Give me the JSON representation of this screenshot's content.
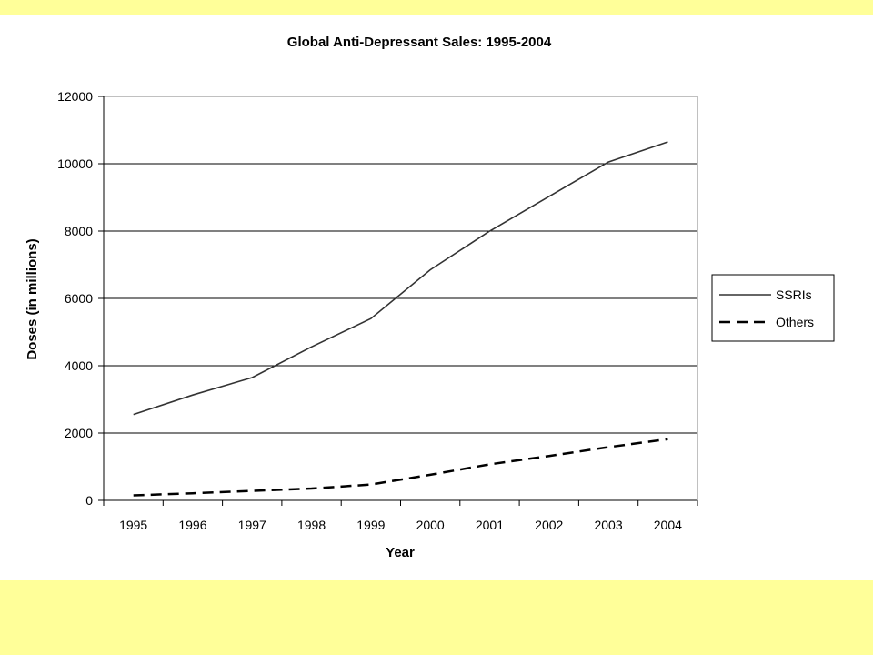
{
  "chart_data": {
    "type": "line",
    "title": "Global Anti-Depressant Sales: 1995-2004",
    "xlabel": "Year",
    "ylabel": "Doses (in millions)",
    "categories": [
      "1995",
      "1996",
      "1997",
      "1998",
      "1999",
      "2000",
      "2001",
      "2002",
      "2003",
      "2004"
    ],
    "ylim": [
      0,
      12000
    ],
    "yticks": [
      0,
      2000,
      4000,
      6000,
      8000,
      10000,
      12000
    ],
    "ytick_labels": [
      "0",
      "2000",
      "4000",
      "6000",
      "8000",
      "10000",
      "12000"
    ],
    "grid": "horizontal",
    "legend_position": "right",
    "series": [
      {
        "name": "SSRIs",
        "line_style": "solid",
        "color": "#333333",
        "values": [
          2550,
          3130,
          3650,
          4560,
          5400,
          6850,
          8000,
          9030,
          10050,
          10650
        ]
      },
      {
        "name": "Others",
        "line_style": "dashed",
        "color": "#000000",
        "values": [
          150,
          210,
          280,
          350,
          470,
          760,
          1070,
          1320,
          1580,
          1820
        ]
      }
    ]
  },
  "colors": {
    "slide_background": "#ffff99",
    "panel_background": "#ffffff",
    "gridline": "#000000"
  }
}
